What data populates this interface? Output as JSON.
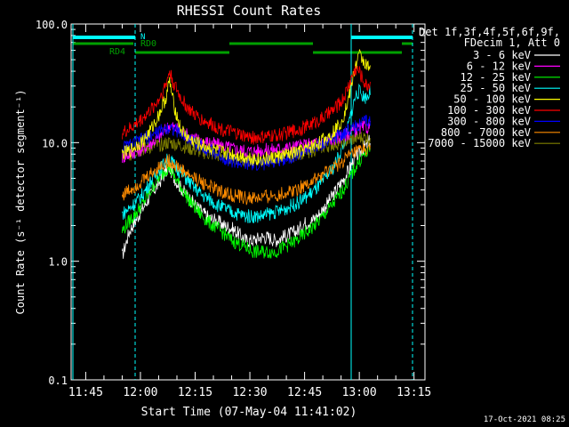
{
  "chart_data": {
    "type": "line",
    "title": "RHESSI Count Rates",
    "xlabel": "Start Time (07-May-04 11:41:02)",
    "ylabel": "Count Rate (s⁻¹ detector segment⁻¹)",
    "yscale": "log",
    "ylim": [
      0.1,
      100.0
    ],
    "xlim_minutes": [
      0,
      97
    ],
    "x_tick_labels": [
      "11:45",
      "12:00",
      "12:15",
      "12:30",
      "12:45",
      "13:00",
      "13:15"
    ],
    "x_tick_minutes": [
      4,
      19,
      34,
      49,
      64,
      79,
      94
    ],
    "y_tick_labels": [
      "0.1",
      "1.0",
      "10.0",
      "100.0"
    ],
    "y_tick_values": [
      0.1,
      1.0,
      10.0,
      100.0
    ],
    "legend_header": [
      "Det 1f,3f,4f,5f,6f,9f,",
      "FDecim 1, Att 0"
    ],
    "legend_position": "right",
    "timestamp": "17-Oct-2021 08:25",
    "attenuator_labels": {
      "n": "N",
      "rd0": "RD0",
      "rd4": "RD4"
    },
    "x_minutes": [
      14,
      16,
      18,
      20,
      22,
      24,
      26,
      27,
      28,
      30,
      32,
      34,
      36,
      38,
      40,
      42,
      44,
      46,
      48,
      50,
      52,
      54,
      56,
      58,
      60,
      62,
      64,
      66,
      68,
      70,
      72,
      74,
      75,
      76,
      77,
      78,
      79,
      80,
      81,
      82
    ],
    "series": [
      {
        "name": "3 - 6 keV",
        "color": "#ffffff",
        "values": [
          1.1,
          1.8,
          2.3,
          2.9,
          3.7,
          4.5,
          5.7,
          6.2,
          5.2,
          4.2,
          3.5,
          3.0,
          2.6,
          2.3,
          2.2,
          2.0,
          1.9,
          1.7,
          1.5,
          1.5,
          1.6,
          1.6,
          1.5,
          1.6,
          1.7,
          1.8,
          2.1,
          2.2,
          2.5,
          3.0,
          3.7,
          4.6,
          5.1,
          5.8,
          6.7,
          7.4,
          8.1,
          8.9,
          9.5,
          10.5
        ]
      },
      {
        "name": "6 - 12 keV",
        "color": "#ff00ff",
        "values": [
          7.5,
          8.0,
          8.5,
          9.0,
          10.0,
          11.0,
          13.0,
          14.0,
          13.5,
          12.5,
          11.5,
          10.8,
          10.3,
          10.0,
          9.6,
          9.3,
          9.0,
          8.7,
          8.5,
          8.5,
          8.6,
          8.7,
          8.8,
          9.0,
          9.1,
          9.3,
          9.5,
          9.8,
          10.0,
          10.3,
          10.8,
          11.3,
          11.6,
          12.0,
          12.4,
          12.8,
          13.2,
          13.3,
          13.5,
          13.5
        ]
      },
      {
        "name": "12 - 25 keV",
        "color": "#00ff00",
        "values": [
          1.8,
          2.2,
          2.6,
          3.2,
          4.0,
          5.0,
          6.0,
          6.2,
          5.3,
          4.3,
          3.4,
          2.8,
          2.4,
          2.1,
          1.9,
          1.7,
          1.5,
          1.4,
          1.3,
          1.2,
          1.2,
          1.2,
          1.2,
          1.3,
          1.4,
          1.5,
          1.7,
          1.9,
          2.2,
          2.6,
          3.1,
          3.8,
          4.2,
          4.8,
          5.5,
          6.2,
          7.0,
          7.7,
          8.2,
          8.8
        ]
      },
      {
        "name": "25 - 50 keV",
        "color": "#00ffff",
        "values": [
          2.5,
          2.8,
          3.2,
          3.8,
          4.8,
          5.8,
          7.0,
          7.3,
          6.6,
          5.6,
          4.8,
          4.1,
          3.6,
          3.3,
          3.0,
          2.8,
          2.6,
          2.5,
          2.4,
          2.4,
          2.4,
          2.5,
          2.6,
          2.7,
          2.9,
          3.1,
          3.4,
          3.8,
          4.3,
          5.1,
          6.3,
          8.5,
          10.5,
          14.0,
          19.0,
          25.0,
          27.0,
          25.0,
          24.0,
          27.0
        ]
      },
      {
        "name": "50 - 100 keV",
        "color": "#ffff00",
        "values": [
          8.0,
          8.5,
          9.5,
          10.5,
          13.0,
          17.0,
          24.0,
          33.0,
          22.0,
          13.0,
          11.0,
          10.0,
          9.5,
          9.0,
          8.6,
          8.2,
          8.0,
          7.8,
          7.5,
          7.3,
          7.2,
          7.3,
          7.5,
          7.8,
          8.0,
          8.3,
          8.7,
          9.3,
          10.0,
          11.0,
          12.5,
          15.0,
          18.0,
          23.0,
          32.0,
          45.0,
          55.0,
          50.0,
          45.0,
          40.0
        ]
      },
      {
        "name": "100 - 300 keV",
        "color": "#ff0000",
        "values": [
          12.0,
          13.0,
          14.5,
          16.5,
          19.0,
          23.0,
          31.0,
          40.0,
          32.0,
          24.0,
          19.5,
          17.0,
          15.5,
          14.5,
          13.5,
          12.8,
          12.2,
          11.7,
          11.2,
          11.0,
          11.0,
          11.2,
          11.5,
          11.8,
          12.3,
          12.8,
          13.5,
          14.5,
          15.5,
          17.0,
          19.0,
          22.0,
          25.0,
          30.0,
          36.0,
          42.0,
          40.0,
          34.0,
          30.0,
          32.0
        ]
      },
      {
        "name": "300 - 800 keV",
        "color": "#0000ff",
        "values": [
          9.0,
          9.5,
          10.0,
          10.8,
          11.5,
          12.3,
          13.2,
          13.6,
          13.0,
          12.0,
          11.0,
          10.0,
          9.2,
          8.6,
          8.0,
          7.5,
          7.0,
          6.7,
          6.5,
          6.5,
          6.6,
          6.8,
          7.0,
          7.3,
          7.6,
          8.0,
          8.5,
          9.0,
          9.6,
          10.2,
          11.0,
          11.8,
          12.3,
          12.8,
          13.3,
          13.8,
          14.3,
          14.6,
          15.0,
          15.0
        ]
      },
      {
        "name": "800 - 7000 keV",
        "color": "#ff8c00",
        "values": [
          3.6,
          4.0,
          4.4,
          4.9,
          5.5,
          6.2,
          6.8,
          7.0,
          6.6,
          6.0,
          5.4,
          5.0,
          4.6,
          4.3,
          4.0,
          3.8,
          3.6,
          3.5,
          3.4,
          3.4,
          3.4,
          3.5,
          3.6,
          3.7,
          3.9,
          4.1,
          4.4,
          4.7,
          5.1,
          5.6,
          6.2,
          6.8,
          7.2,
          7.6,
          8.0,
          8.3,
          8.6,
          8.8,
          8.9,
          8.5
        ]
      },
      {
        "name": "7000 - 15000 keV",
        "color": "#808000",
        "values": [
          8.0,
          8.0,
          8.5,
          8.8,
          9.2,
          9.5,
          9.8,
          10.0,
          9.8,
          9.5,
          9.0,
          8.6,
          8.3,
          8.0,
          7.8,
          7.6,
          7.5,
          7.3,
          7.2,
          7.2,
          7.2,
          7.3,
          7.5,
          7.6,
          7.8,
          8.0,
          8.3,
          8.6,
          9.0,
          9.3,
          9.7,
          10.0,
          10.2,
          10.4,
          10.6,
          10.8,
          11.0,
          11.0,
          11.0,
          10.8
        ]
      }
    ]
  }
}
